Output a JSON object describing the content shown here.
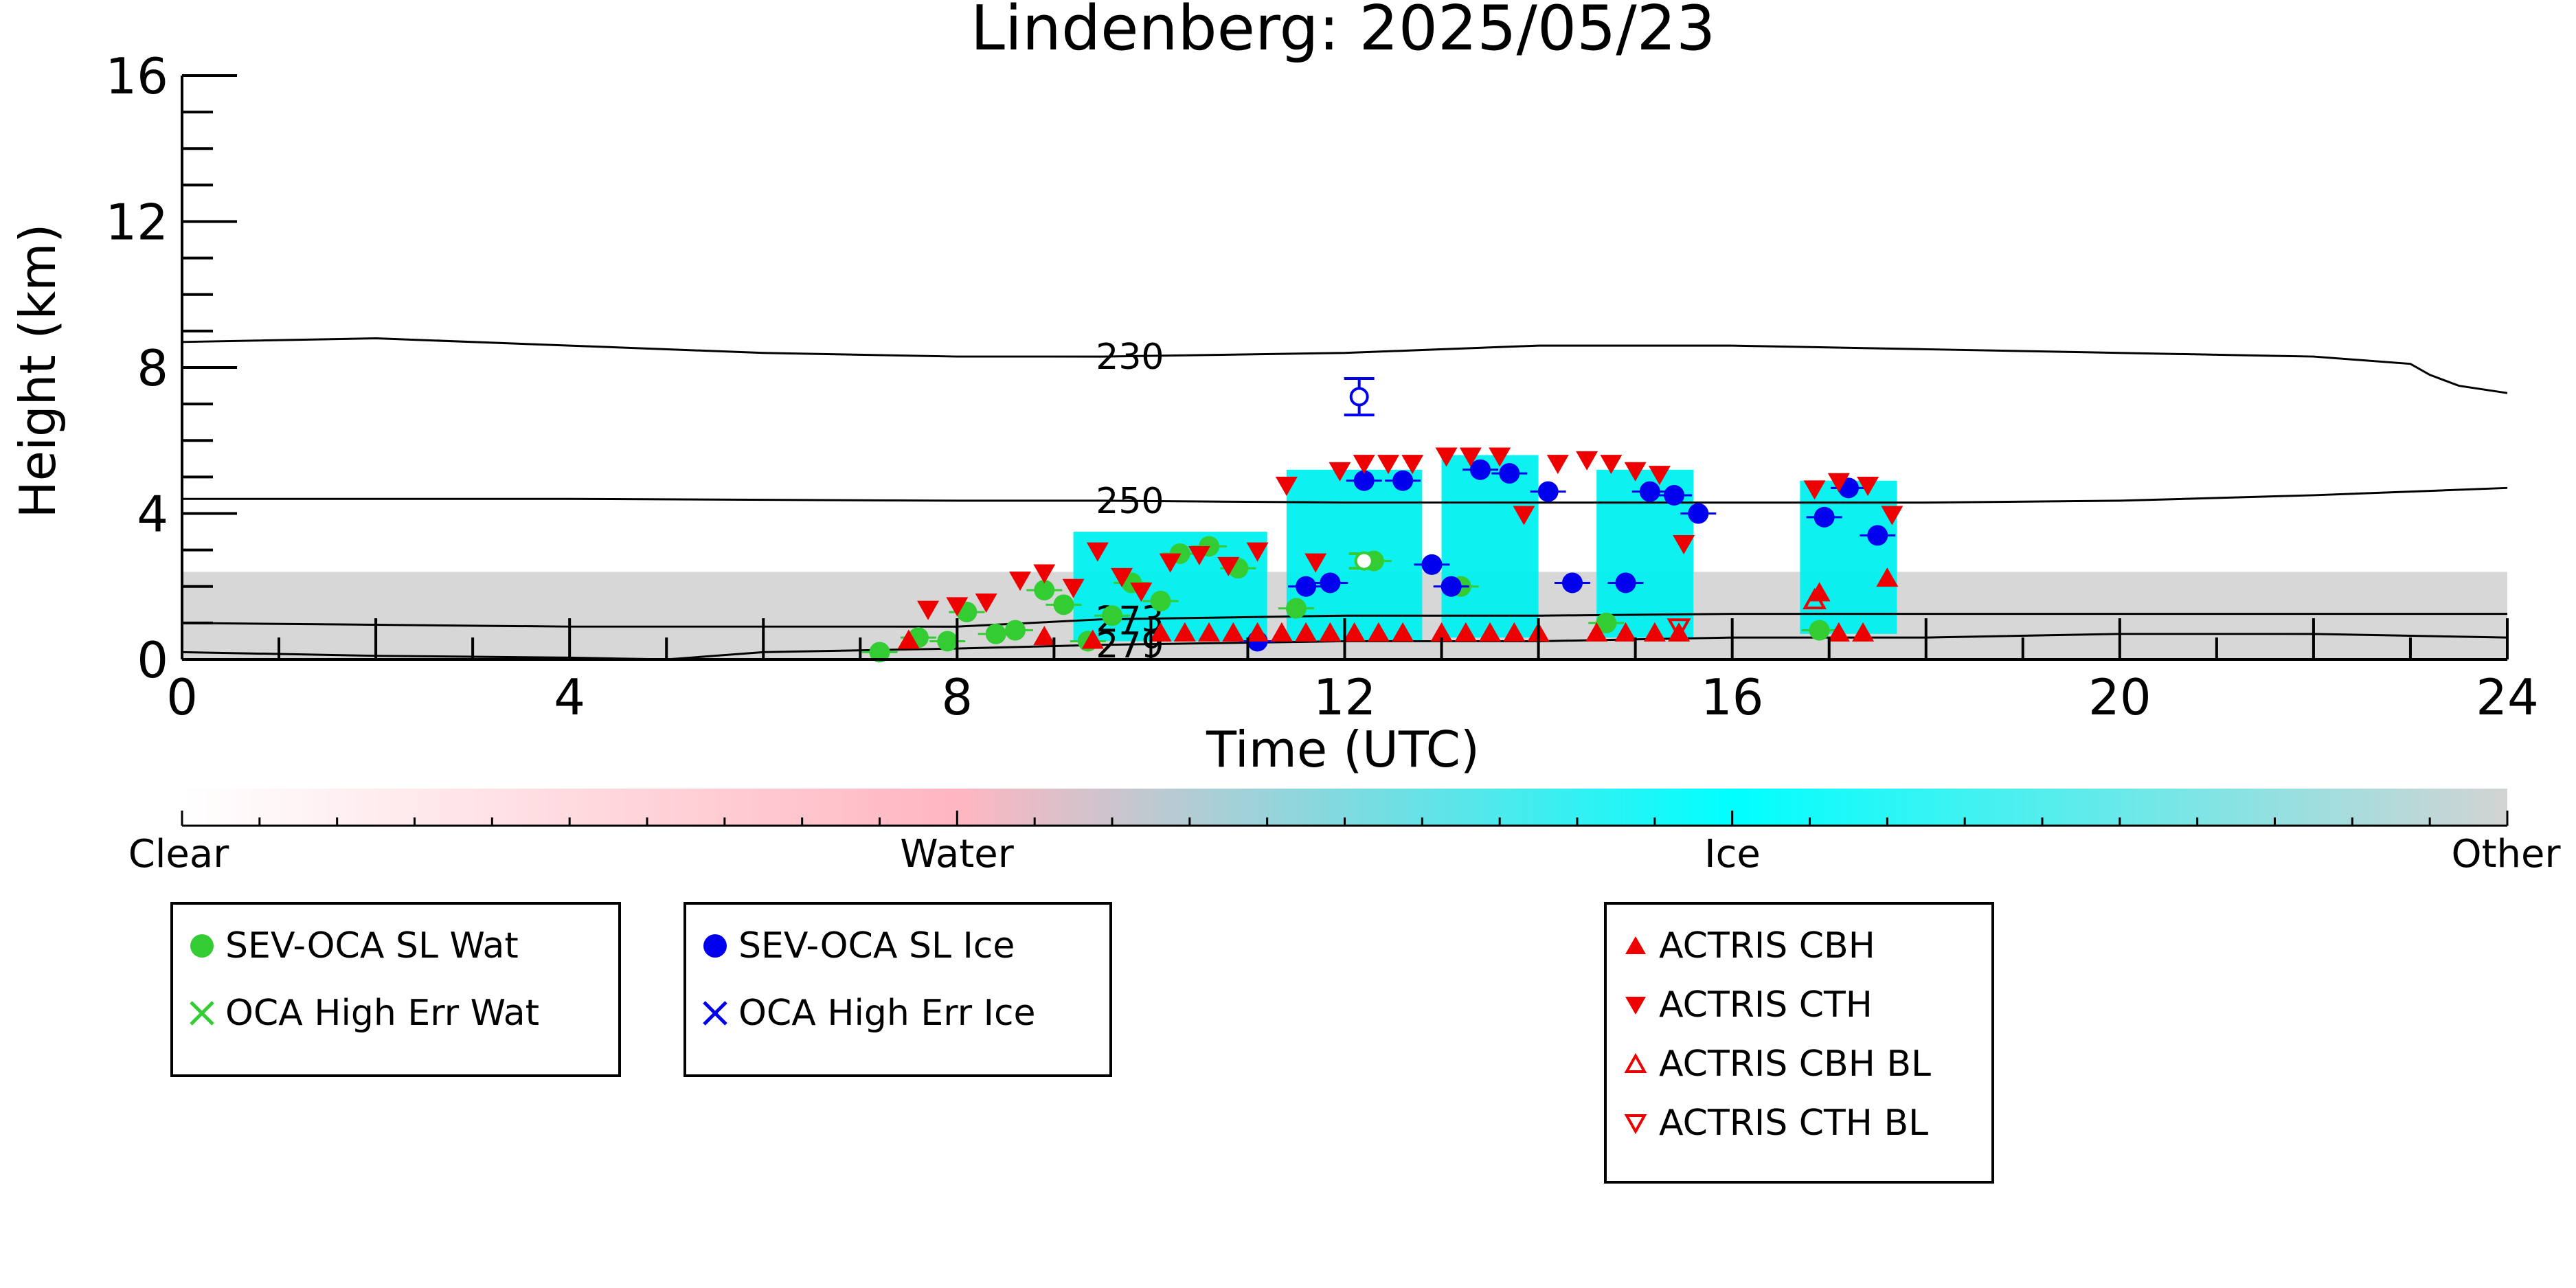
{
  "chart_data": {
    "type": "scatter",
    "title": "Lindenberg: 2025/05/23",
    "xlabel": "Time (UTC)",
    "ylabel": "Height (km)",
    "xlim": [
      0,
      24
    ],
    "ylim": [
      0,
      16
    ],
    "x_ticks": [
      0,
      4,
      8,
      12,
      16,
      20,
      24
    ],
    "y_ticks": [
      0,
      4,
      8,
      12,
      16
    ],
    "isotherms": [
      {
        "label": "230",
        "x": [
          0,
          2,
          4,
          6,
          8,
          9.5,
          12,
          14,
          16,
          18,
          20,
          22,
          23,
          23.2,
          23.5,
          24
        ],
        "y": [
          8.7,
          8.8,
          8.6,
          8.4,
          8.3,
          8.3,
          8.4,
          8.6,
          8.6,
          8.5,
          8.4,
          8.3,
          8.1,
          7.8,
          7.5,
          7.3
        ]
      },
      {
        "label": "250",
        "x": [
          0,
          4,
          8,
          9.5,
          12,
          14,
          16,
          18,
          20,
          22,
          24
        ],
        "y": [
          4.4,
          4.4,
          4.35,
          4.35,
          4.3,
          4.3,
          4.3,
          4.3,
          4.35,
          4.5,
          4.7
        ]
      },
      {
        "label": "273",
        "x": [
          0,
          4,
          8,
          9.5,
          12,
          14,
          16,
          18,
          20,
          22,
          24
        ],
        "y": [
          1.0,
          0.9,
          0.9,
          1.1,
          1.2,
          1.2,
          1.25,
          1.25,
          1.25,
          1.25,
          1.25
        ]
      },
      {
        "label": "279",
        "x": [
          0,
          2,
          4,
          5,
          6,
          8,
          9.5,
          12,
          14,
          16,
          18,
          20,
          22,
          24
        ],
        "y": [
          0.2,
          0.1,
          0.05,
          0.0,
          0.2,
          0.3,
          0.4,
          0.5,
          0.5,
          0.6,
          0.6,
          0.7,
          0.7,
          0.6
        ]
      }
    ],
    "cloud_regions": [
      {
        "phase": "Other",
        "x0": 0,
        "x1": 24,
        "y0": 0,
        "y1": 2.4
      },
      {
        "phase": "Ice",
        "x0": 9.2,
        "x1": 11.2,
        "y0": 0.5,
        "y1": 3.5
      },
      {
        "phase": "Ice",
        "x0": 11.4,
        "x1": 12.8,
        "y0": 0.5,
        "y1": 5.2
      },
      {
        "phase": "Ice",
        "x0": 13.0,
        "x1": 14.0,
        "y0": 0.6,
        "y1": 5.6
      },
      {
        "phase": "Ice",
        "x0": 14.6,
        "x1": 15.6,
        "y0": 0.6,
        "y1": 5.2
      },
      {
        "phase": "Ice",
        "x0": 16.7,
        "x1": 17.7,
        "y0": 0.7,
        "y1": 4.9
      }
    ],
    "series": [
      {
        "name": "SEV-OCA SL Wat",
        "color": "#33cc33",
        "marker": "circle",
        "x": [
          7.2,
          7.6,
          7.9,
          8.1,
          8.4,
          8.6,
          8.9,
          9.1,
          9.35,
          9.6,
          9.8,
          10.1,
          10.3,
          10.6,
          10.9,
          11.5,
          12.3,
          13.2,
          14.7,
          16.9
        ],
        "y": [
          0.2,
          0.6,
          0.5,
          1.3,
          0.7,
          0.8,
          1.9,
          1.5,
          0.5,
          1.2,
          2.1,
          1.6,
          2.9,
          3.1,
          2.5,
          1.4,
          2.7,
          2.0,
          1.0,
          0.8
        ]
      },
      {
        "name": "SEV-OCA SL Ice",
        "color": "#0000ee",
        "marker": "circle",
        "x": [
          11.1,
          11.6,
          11.85,
          12.2,
          12.6,
          12.9,
          13.1,
          13.4,
          13.7,
          14.1,
          14.35,
          14.9,
          15.15,
          15.4,
          15.65,
          16.95,
          17.2,
          17.5
        ],
        "y": [
          0.5,
          2.0,
          2.1,
          4.9,
          4.9,
          2.6,
          2.0,
          5.2,
          5.1,
          4.6,
          2.1,
          2.1,
          4.6,
          4.5,
          4.0,
          3.9,
          4.7,
          3.4
        ]
      },
      {
        "name": "ACTRIS CBH",
        "color": "#ee0000",
        "marker": "triangle-up",
        "x": [
          7.5,
          8.9,
          9.4,
          10.1,
          10.35,
          10.6,
          10.85,
          11.1,
          11.35,
          11.6,
          11.85,
          12.1,
          12.35,
          12.6,
          13.0,
          13.25,
          13.5,
          13.75,
          14.0,
          14.6,
          14.9,
          15.2,
          15.45,
          16.9,
          17.1,
          17.35,
          17.6
        ],
        "y": [
          0.5,
          0.6,
          0.5,
          0.7,
          0.7,
          0.7,
          0.7,
          0.7,
          0.7,
          0.7,
          0.7,
          0.7,
          0.7,
          0.7,
          0.7,
          0.7,
          0.7,
          0.7,
          0.7,
          0.7,
          0.7,
          0.7,
          0.7,
          1.8,
          0.7,
          0.7,
          2.2
        ]
      },
      {
        "name": "ACTRIS CTH",
        "color": "#ee0000",
        "marker": "triangle-down",
        "x": [
          7.7,
          8.0,
          8.3,
          8.65,
          8.9,
          9.2,
          9.45,
          9.7,
          9.9,
          10.2,
          10.5,
          10.8,
          11.1,
          11.4,
          11.7,
          11.95,
          12.2,
          12.45,
          12.7,
          13.05,
          13.3,
          13.6,
          13.85,
          14.2,
          14.5,
          14.75,
          15.0,
          15.25,
          15.5,
          16.85,
          17.1,
          17.4,
          17.65
        ],
        "y": [
          1.4,
          1.5,
          1.6,
          2.2,
          2.4,
          2.0,
          3.0,
          2.3,
          1.9,
          2.7,
          2.9,
          2.6,
          3.0,
          4.8,
          2.7,
          5.2,
          5.4,
          5.4,
          5.4,
          5.6,
          5.6,
          5.6,
          4.0,
          5.4,
          5.5,
          5.4,
          5.2,
          5.1,
          3.2,
          4.7,
          4.9,
          4.8,
          4.0
        ]
      },
      {
        "name": "ACTRIS CBH BL",
        "color": "#ee0000",
        "marker": "triangle-up-open",
        "x": [
          16.85
        ],
        "y": [
          1.6
        ]
      },
      {
        "name": "ACTRIS CTH BL",
        "color": "#ee0000",
        "marker": "triangle-down-open",
        "x": [
          15.45
        ],
        "y": [
          0.9
        ]
      },
      {
        "name": "OCA High Err Ice",
        "color": "#0000ee",
        "marker": "circle-open",
        "x": [
          12.15
        ],
        "y": [
          7.2
        ],
        "yerr": [
          0.5
        ]
      },
      {
        "name": "OCA High Err Wat",
        "color": "#33cc33",
        "marker": "circle-open",
        "x": [
          12.2
        ],
        "y": [
          2.7
        ],
        "yerr": [
          0.2
        ]
      }
    ],
    "colorbar": {
      "labels": [
        "Clear",
        "Water",
        "Ice",
        "Other"
      ],
      "colors": [
        "#ffffff",
        "#ffb6c1",
        "#00ffff",
        "#d3d3d3"
      ]
    }
  },
  "legend": {
    "box1": [
      "SEV-OCA SL Wat",
      "OCA High Err Wat"
    ],
    "box2": [
      "SEV-OCA SL Ice",
      "OCA High Err Ice"
    ],
    "box3": [
      "ACTRIS CBH",
      "ACTRIS CTH",
      "ACTRIS CBH BL",
      "ACTRIS CTH BL"
    ]
  }
}
